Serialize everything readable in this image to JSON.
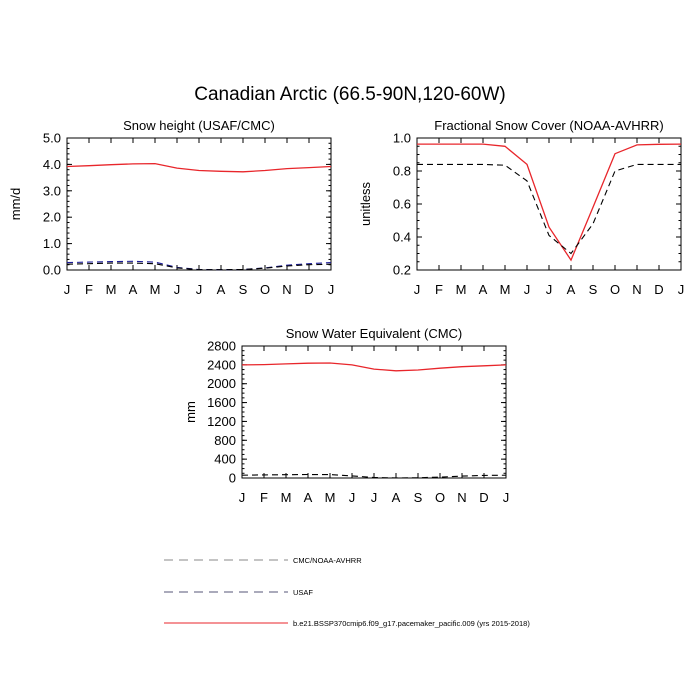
{
  "figure": {
    "title": "Canadian Arctic (66.5-90N,120-60W)"
  },
  "colors": {
    "model": "#e8262b",
    "obs_cmc": "#000000",
    "obs_usaf": "#1c1c9a",
    "legend_dash": "#888888"
  },
  "legend": {
    "items": [
      {
        "label": "CMC/NOAA-AVHRR",
        "style": "dashed",
        "color": "#888888"
      },
      {
        "label": "USAF",
        "style": "dashed",
        "color": "#555577"
      },
      {
        "label": "b.e21.BSSP370cmip6.f09_g17.pacemaker_pacific.009 (yrs 2015-2018)",
        "style": "solid",
        "color": "#e8262b"
      }
    ]
  },
  "chart_data": [
    {
      "type": "line",
      "title": "Snow height (USAF/CMC)",
      "ylabel": "mm/d",
      "xlabel": "",
      "categories": [
        "J",
        "F",
        "M",
        "A",
        "M",
        "J",
        "J",
        "A",
        "S",
        "O",
        "N",
        "D",
        "J"
      ],
      "ylim": [
        0,
        5
      ],
      "yticks": [
        "0.0",
        "1.0",
        "2.0",
        "3.0",
        "4.0",
        "5.0"
      ],
      "series": [
        {
          "values": [
            3.92,
            3.95,
            3.99,
            4.02,
            4.03,
            3.86,
            3.77,
            3.74,
            3.72,
            3.77,
            3.84,
            3.88,
            3.92
          ]
        },
        {
          "values": [
            0.28,
            0.3,
            0.32,
            0.33,
            0.3,
            0.1,
            0.02,
            0.01,
            0.02,
            0.08,
            0.18,
            0.24,
            0.28
          ]
        },
        {
          "values": [
            0.22,
            0.24,
            0.26,
            0.26,
            0.24,
            0.08,
            0.01,
            0.01,
            0.02,
            0.07,
            0.15,
            0.2,
            0.22
          ]
        }
      ]
    },
    {
      "type": "line",
      "title": "Fractional Snow Cover (NOAA-AVHRR)",
      "ylabel": "unitless",
      "xlabel": "",
      "categories": [
        "J",
        "F",
        "M",
        "A",
        "M",
        "J",
        "J",
        "A",
        "S",
        "O",
        "N",
        "D",
        "J"
      ],
      "ylim": [
        0.2,
        1.0
      ],
      "yticks": [
        "0.2",
        "0.4",
        "0.6",
        "0.8",
        "1.0"
      ],
      "series": [
        {
          "values": [
            0.963,
            0.963,
            0.963,
            0.963,
            0.95,
            0.84,
            0.46,
            0.26,
            0.58,
            0.905,
            0.958,
            0.962,
            0.963
          ]
        },
        {
          "values": [
            0.84,
            0.84,
            0.84,
            0.84,
            0.835,
            0.74,
            0.41,
            0.3,
            0.48,
            0.8,
            0.84,
            0.84,
            0.84
          ]
        }
      ]
    },
    {
      "type": "line",
      "title": "Snow Water Equivalent (CMC)",
      "ylabel": "mm",
      "xlabel": "",
      "categories": [
        "J",
        "F",
        "M",
        "A",
        "M",
        "J",
        "J",
        "A",
        "S",
        "O",
        "N",
        "D",
        "J"
      ],
      "ylim": [
        0,
        2800
      ],
      "yticks": [
        "0",
        "400",
        "800",
        "1200",
        "1600",
        "2000",
        "2400",
        "2800"
      ],
      "series": [
        {
          "values": [
            2400,
            2405,
            2420,
            2435,
            2440,
            2400,
            2310,
            2275,
            2290,
            2330,
            2360,
            2380,
            2400
          ]
        },
        {
          "values": [
            60,
            65,
            70,
            75,
            72,
            45,
            10,
            2,
            5,
            20,
            40,
            55,
            60
          ]
        }
      ]
    }
  ]
}
